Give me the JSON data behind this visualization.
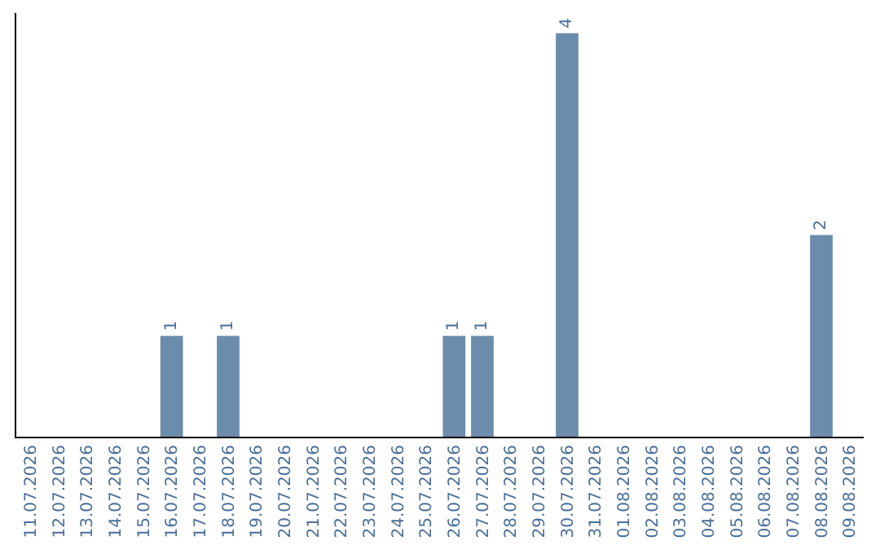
{
  "chart_data": {
    "type": "bar",
    "categories": [
      "11.07.2026",
      "12.07.2026",
      "13.07.2026",
      "14.07.2026",
      "15.07.2026",
      "16.07.2026",
      "17.07.2026",
      "18.07.2026",
      "19.07.2026",
      "20.07.2026",
      "21.07.2026",
      "22.07.2026",
      "23.07.2026",
      "24.07.2026",
      "25.07.2026",
      "26.07.2026",
      "27.07.2026",
      "28.07.2026",
      "29.07.2026",
      "30.07.2026",
      "31.07.2026",
      "01.08.2026",
      "02.08.2026",
      "03.08.2026",
      "04.08.2026",
      "05.08.2026",
      "06.08.2026",
      "07.08.2026",
      "08.08.2026",
      "09.08.2026"
    ],
    "values": [
      0,
      0,
      0,
      0,
      0,
      1,
      0,
      1,
      0,
      0,
      0,
      0,
      0,
      0,
      0,
      1,
      1,
      0,
      0,
      4,
      0,
      0,
      0,
      0,
      0,
      0,
      0,
      0,
      2,
      0
    ],
    "color": "#6b8cab",
    "ylim": [
      0,
      4.2
    ],
    "value_labels": [
      null,
      null,
      null,
      null,
      null,
      "1",
      null,
      "1",
      null,
      null,
      null,
      null,
      null,
      null,
      null,
      "1",
      "1",
      null,
      null,
      "4",
      null,
      null,
      null,
      null,
      null,
      null,
      null,
      null,
      "2",
      null
    ],
    "grid": false,
    "legend": false,
    "tick_labels": "x"
  }
}
